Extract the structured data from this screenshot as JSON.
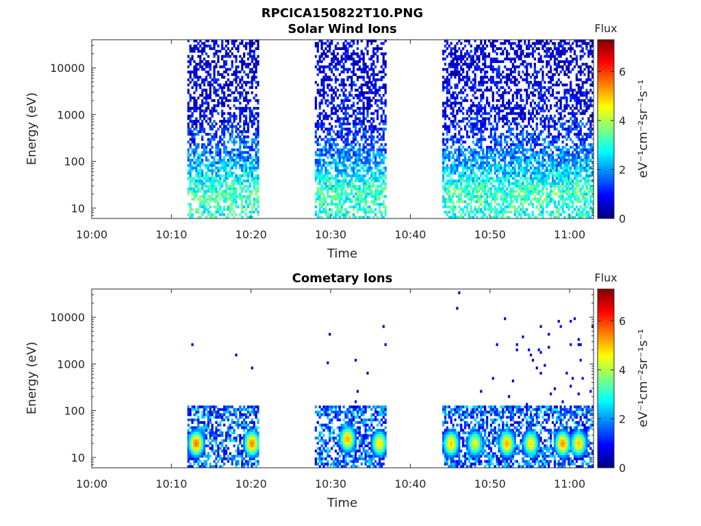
{
  "figure_title": "RPCICA150822T10.PNG",
  "chart_data": [
    {
      "type": "heatmap",
      "title": "Solar Wind Ions",
      "xlabel": "Time",
      "ylabel": "Energy (eV)",
      "y_scale": "log",
      "ylim": [
        6,
        40000
      ],
      "x_range": [
        "10:00",
        "11:03"
      ],
      "x_ticks": [
        "10:00",
        "10:10",
        "10:20",
        "10:30",
        "10:40",
        "10:50",
        "11:00"
      ],
      "y_ticks": [
        {
          "value": 10,
          "label": "10"
        },
        {
          "value": 100,
          "label": "100"
        },
        {
          "value": 1000,
          "label": "1000"
        },
        {
          "value": 10000,
          "label": "10000"
        }
      ],
      "colorbar": {
        "title": "Flux",
        "label": "eV⁻¹cm⁻²sr⁻¹s⁻¹",
        "range": [
          0,
          7.3
        ],
        "ticks": [
          0,
          2,
          4,
          6
        ],
        "colormap": "jet"
      },
      "data_intervals": [
        {
          "start": "10:12",
          "end": "10:21"
        },
        {
          "start": "10:28",
          "end": "10:37"
        },
        {
          "start": "10:44",
          "end": "11:03"
        }
      ],
      "flux_profile": [
        {
          "energy": 8,
          "flux": 3.0
        },
        {
          "energy": 25,
          "flux": 3.2
        },
        {
          "energy": 60,
          "flux": 2.4
        },
        {
          "energy": 200,
          "flux": 1.6
        },
        {
          "energy": 1000,
          "flux": 0.8
        },
        {
          "energy": 10000,
          "flux": 0.6
        }
      ]
    },
    {
      "type": "heatmap",
      "title": "Cometary Ions",
      "xlabel": "Time",
      "ylabel": "Energy (eV)",
      "y_scale": "log",
      "ylim": [
        6,
        40000
      ],
      "x_range": [
        "10:00",
        "11:03"
      ],
      "x_ticks": [
        "10:00",
        "10:10",
        "10:20",
        "10:30",
        "10:40",
        "10:50",
        "11:00"
      ],
      "y_ticks": [
        {
          "value": 10,
          "label": "10"
        },
        {
          "value": 100,
          "label": "100"
        },
        {
          "value": 1000,
          "label": "1000"
        },
        {
          "value": 10000,
          "label": "10000"
        }
      ],
      "colorbar": {
        "title": "Flux",
        "label": "eV⁻¹cm⁻²sr⁻¹s⁻¹",
        "range": [
          0,
          7.3
        ],
        "ticks": [
          0,
          2,
          4,
          6
        ],
        "colormap": "jet"
      },
      "data_intervals": [
        {
          "start": "10:12",
          "end": "10:21"
        },
        {
          "start": "10:28",
          "end": "10:37"
        },
        {
          "start": "10:44",
          "end": "11:03"
        }
      ],
      "energy_cutoff": 130,
      "sparse_high_energy": {
        "start": "10:50",
        "end": "11:03",
        "max_energy": 10000
      },
      "peaks": [
        {
          "time": "10:13",
          "energy": 20,
          "flux": 5.6
        },
        {
          "time": "10:20",
          "energy": 20,
          "flux": 5.5
        },
        {
          "time": "10:32",
          "energy": 25,
          "flux": 5.2
        },
        {
          "time": "10:36",
          "energy": 20,
          "flux": 4.8
        },
        {
          "time": "10:45",
          "energy": 20,
          "flux": 5.0
        },
        {
          "time": "10:48",
          "energy": 20,
          "flux": 4.5
        },
        {
          "time": "10:52",
          "energy": 20,
          "flux": 5.2
        },
        {
          "time": "10:55",
          "energy": 20,
          "flux": 4.8
        },
        {
          "time": "10:59",
          "energy": 20,
          "flux": 5.4
        },
        {
          "time": "11:01",
          "energy": 20,
          "flux": 5.0
        }
      ]
    }
  ]
}
